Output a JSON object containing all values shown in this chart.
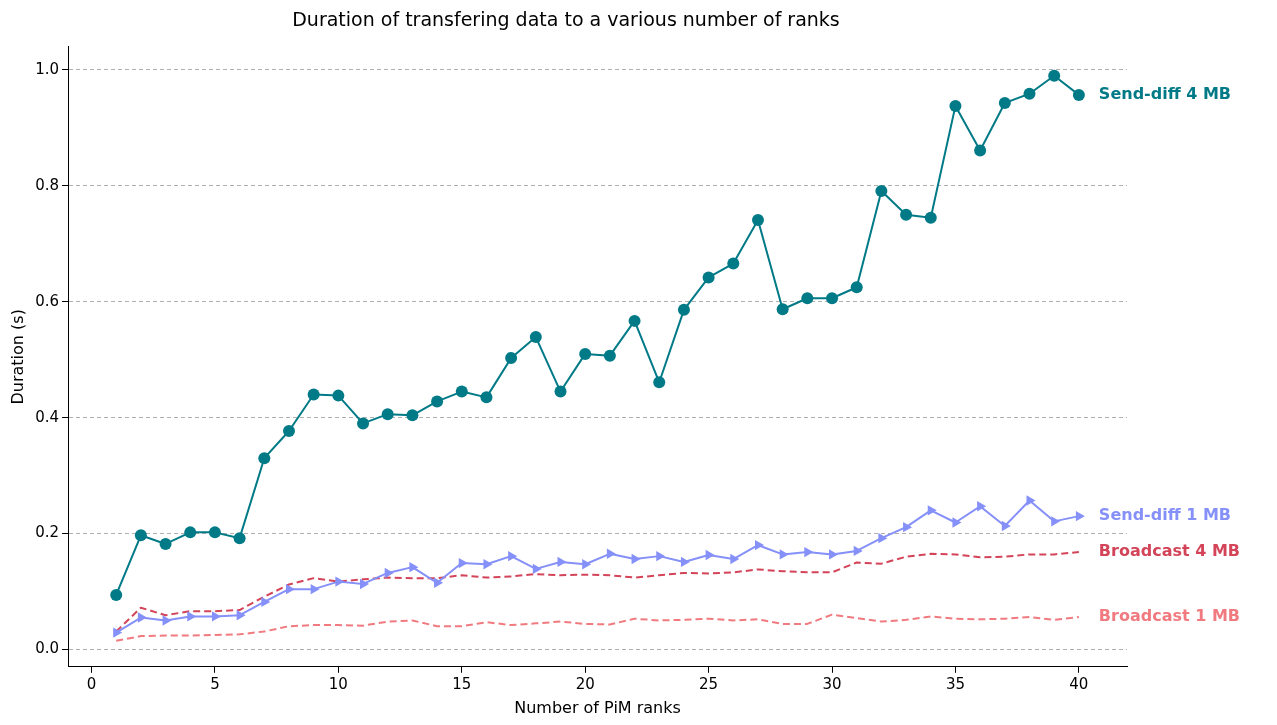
{
  "chart_data": {
    "type": "line",
    "title": "Duration of transfering data to a various number of ranks",
    "xlabel": "Number of PiM ranks",
    "ylabel": "Duration (s)",
    "x": [
      1,
      2,
      3,
      4,
      5,
      6,
      7,
      8,
      9,
      10,
      11,
      12,
      13,
      14,
      15,
      16,
      17,
      18,
      19,
      20,
      21,
      22,
      23,
      24,
      25,
      26,
      27,
      28,
      29,
      30,
      31,
      32,
      33,
      34,
      35,
      36,
      37,
      38,
      39,
      40
    ],
    "series": [
      {
        "name": "Send-diff 4 MB",
        "color": "#007a87",
        "marker": "circle",
        "line_style": "solid",
        "values": [
          0.094,
          0.197,
          0.182,
          0.202,
          0.202,
          0.192,
          0.33,
          0.377,
          0.44,
          0.438,
          0.39,
          0.406,
          0.404,
          0.428,
          0.445,
          0.435,
          0.503,
          0.539,
          0.445,
          0.51,
          0.507,
          0.567,
          0.461,
          0.586,
          0.642,
          0.666,
          0.741,
          0.587,
          0.606,
          0.606,
          0.625,
          0.791,
          0.75,
          0.745,
          0.938,
          0.861,
          0.943,
          0.959,
          0.99,
          0.957
        ]
      },
      {
        "name": "Send-diff 1 MB",
        "color": "#8590f8",
        "marker": "triangle",
        "line_style": "solid",
        "values": [
          0.029,
          0.055,
          0.05,
          0.057,
          0.057,
          0.059,
          0.082,
          0.104,
          0.104,
          0.117,
          0.113,
          0.132,
          0.142,
          0.115,
          0.149,
          0.147,
          0.161,
          0.139,
          0.151,
          0.147,
          0.165,
          0.156,
          0.161,
          0.151,
          0.163,
          0.156,
          0.18,
          0.164,
          0.168,
          0.164,
          0.17,
          0.192,
          0.211,
          0.24,
          0.219,
          0.247,
          0.213,
          0.257,
          0.221,
          0.23
        ]
      },
      {
        "name": "Broadcast 4 MB",
        "color": "#d44459",
        "marker": "none",
        "line_style": "dashed",
        "values": [
          0.031,
          0.072,
          0.059,
          0.066,
          0.066,
          0.068,
          0.091,
          0.112,
          0.123,
          0.117,
          0.121,
          0.124,
          0.123,
          0.123,
          0.128,
          0.124,
          0.126,
          0.13,
          0.128,
          0.129,
          0.128,
          0.124,
          0.128,
          0.132,
          0.131,
          0.133,
          0.138,
          0.135,
          0.133,
          0.133,
          0.15,
          0.148,
          0.16,
          0.165,
          0.164,
          0.159,
          0.16,
          0.164,
          0.164,
          0.168
        ]
      },
      {
        "name": "Broadcast 1 MB",
        "color": "#f07a7f",
        "marker": "none",
        "line_style": "dashed",
        "values": [
          0.015,
          0.023,
          0.024,
          0.024,
          0.025,
          0.026,
          0.031,
          0.04,
          0.042,
          0.042,
          0.041,
          0.048,
          0.05,
          0.04,
          0.04,
          0.047,
          0.042,
          0.045,
          0.048,
          0.044,
          0.043,
          0.053,
          0.05,
          0.051,
          0.053,
          0.05,
          0.052,
          0.044,
          0.044,
          0.06,
          0.054,
          0.048,
          0.051,
          0.057,
          0.053,
          0.052,
          0.053,
          0.056,
          0.051,
          0.056
        ]
      }
    ],
    "xlim": [
      -0.95,
      41.95
    ],
    "xticks": [
      0,
      5,
      10,
      15,
      20,
      25,
      30,
      35,
      40
    ],
    "ylim": [
      -0.03,
      1.04
    ],
    "yticks": [
      {
        "value": 0,
        "label": "0.0"
      },
      0.2,
      0.4,
      0.6,
      0.8,
      {
        "value": 1,
        "label": "1.0"
      }
    ],
    "grid": "y",
    "legend": false
  }
}
